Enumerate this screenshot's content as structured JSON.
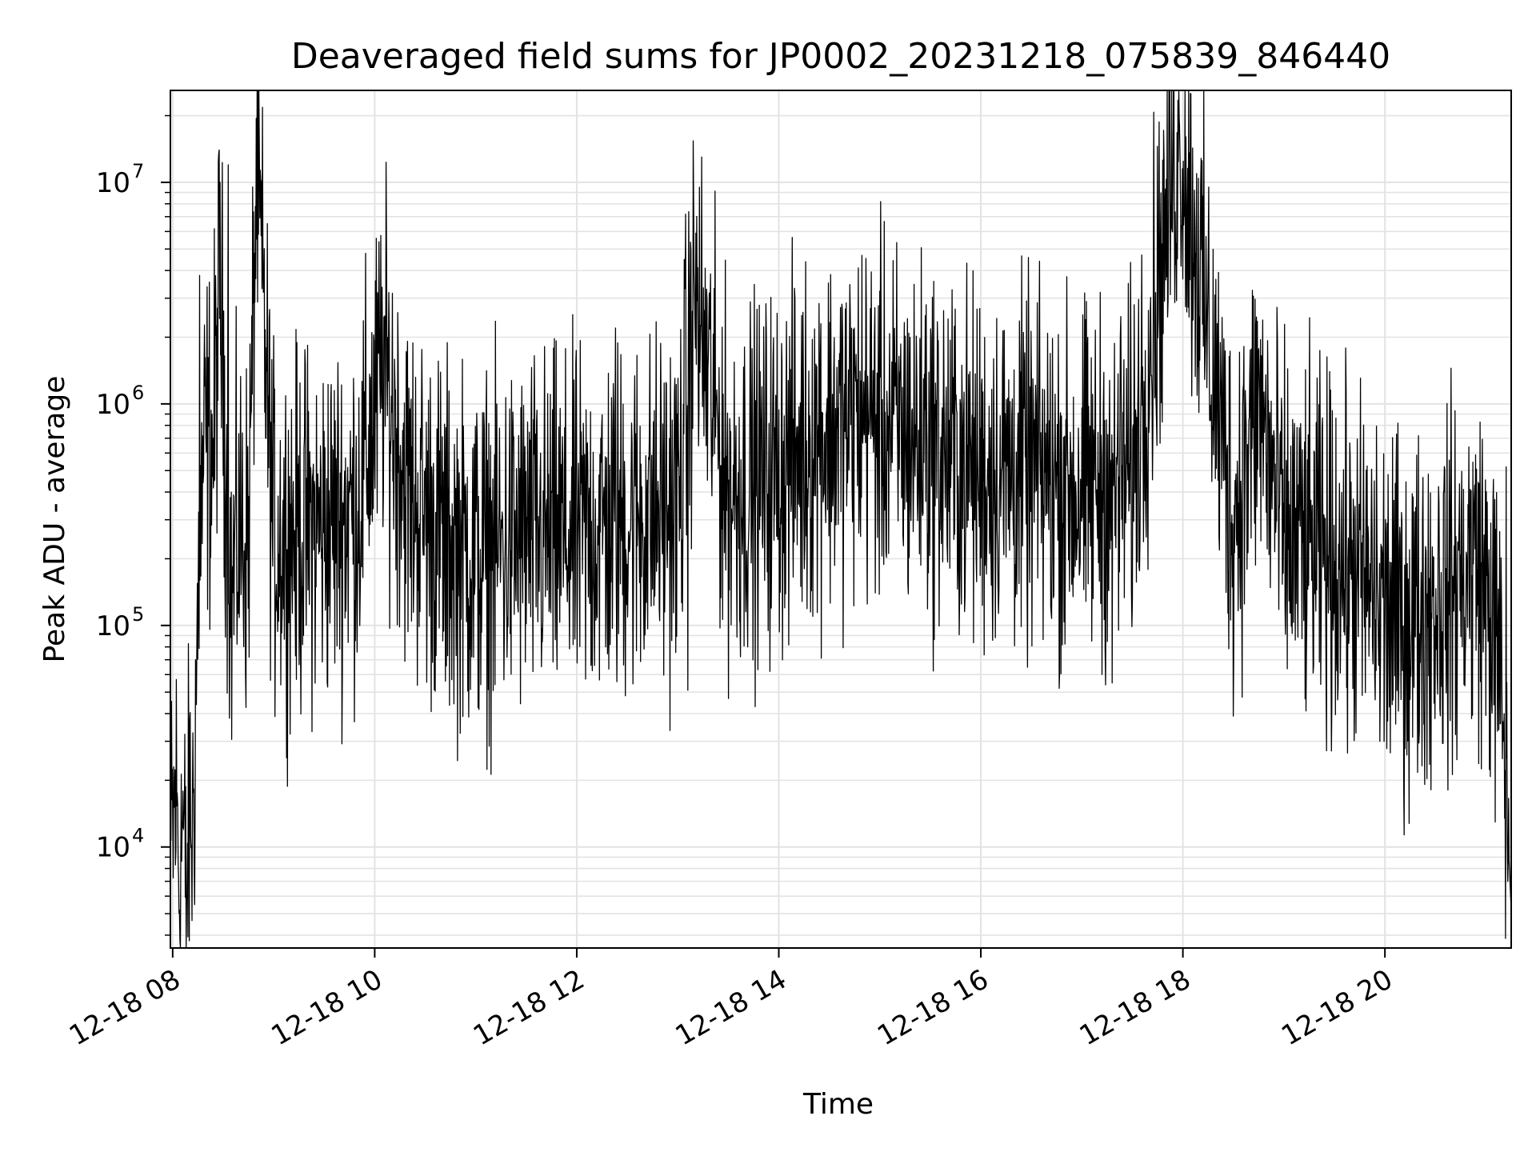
{
  "chart_data": {
    "type": "line",
    "title": "Deaveraged field sums for JP0002_20231218_075839_846440",
    "xlabel": "Time",
    "ylabel": "Peak ADU - average",
    "yscale": "log",
    "xlim": [
      "2023-12-18T07:58:39",
      "2023-12-18T21:15:00"
    ],
    "ylim": [
      3500,
      26000000
    ],
    "grid": true,
    "x_tick_labels": [
      "12-18 08",
      "12-18 10",
      "12-18 12",
      "12-18 14",
      "12-18 16",
      "12-18 18",
      "12-18 20"
    ],
    "y_tick_labels": [
      {
        "base": "10",
        "exp": "4"
      },
      {
        "base": "10",
        "exp": "5"
      },
      {
        "base": "10",
        "exp": "6"
      },
      {
        "base": "10",
        "exp": "7"
      }
    ],
    "line_color": "#000000",
    "series": [
      {
        "x": [
          "2023-12-18T07:59",
          "2023-12-18T08:02",
          "2023-12-18T08:04",
          "2023-12-18T08:06",
          "2023-12-18T08:08",
          "2023-12-18T08:10",
          "2023-12-18T08:12",
          "2023-12-18T08:14",
          "2023-12-18T08:16",
          "2023-12-18T08:18",
          "2023-12-18T08:20",
          "2023-12-18T08:24",
          "2023-12-18T08:28",
          "2023-12-18T08:32",
          "2023-12-18T08:35",
          "2023-12-18T08:38",
          "2023-12-18T08:40",
          "2023-12-18T08:45",
          "2023-12-18T08:50",
          "2023-12-18T09:00",
          "2023-12-18T09:30",
          "2023-12-18T09:50",
          "2023-12-18T10:05",
          "2023-12-18T10:20",
          "2023-12-18T10:40",
          "2023-12-18T11:00",
          "2023-12-18T11:30",
          "2023-12-18T12:00",
          "2023-12-18T12:30",
          "2023-12-18T13:00",
          "2023-12-18T13:10",
          "2023-12-18T13:30",
          "2023-12-18T14:00",
          "2023-12-18T14:20",
          "2023-12-18T14:50",
          "2023-12-18T15:20",
          "2023-12-18T16:00",
          "2023-12-18T16:30",
          "2023-12-18T17:00",
          "2023-12-18T17:30",
          "2023-12-18T17:58",
          "2023-12-18T18:30",
          "2023-12-18T18:45",
          "2023-12-18T19:00",
          "2023-12-18T19:30",
          "2023-12-18T19:50",
          "2023-12-18T20:10",
          "2023-12-18T20:40",
          "2023-12-18T20:55",
          "2023-12-18T21:05",
          "2023-12-18T21:10",
          "2023-12-18T21:14"
        ],
        "y": [
          9000,
          17000,
          8000,
          14000,
          5200,
          15000,
          12000,
          60000,
          200000,
          500000,
          700000,
          600000,
          3800000,
          500000,
          120000,
          250000,
          260000,
          250000,
          12000000,
          250000,
          280000,
          350000,
          1500000,
          400000,
          250000,
          200000,
          250000,
          250000,
          300000,
          350000,
          3000000,
          400000,
          500000,
          700000,
          900000,
          700000,
          500000,
          500000,
          400000,
          500000,
          18000000,
          300000,
          1000000,
          250000,
          200000,
          150000,
          100000,
          150000,
          200000,
          100000,
          40000,
          9000
        ],
        "num_points": 3000,
        "noise_dex": 0.4,
        "spikes": [
          {
            "x": "2023-12-18T08:16",
            "y": 3800000
          },
          {
            "x": "2023-12-18T08:33",
            "y": 12000000
          },
          {
            "x": "2023-12-18T12:23",
            "y": 2200000
          },
          {
            "x": "2023-12-18T13:10",
            "y": 3000000
          },
          {
            "x": "2023-12-18T14:25",
            "y": 2300000
          },
          {
            "x": "2023-12-18T14:52",
            "y": 2700000
          },
          {
            "x": "2023-12-18T15:27",
            "y": 2500000
          },
          {
            "x": "2023-12-18T17:58",
            "y": 18000000
          },
          {
            "x": "2023-12-18T21:12",
            "y": 520000
          }
        ],
        "dips": [
          {
            "x": "2023-12-18T08:04",
            "y": 5200
          },
          {
            "x": "2023-12-18T10:42",
            "y": 56000
          },
          {
            "x": "2023-12-18T11:03",
            "y": 54000
          },
          {
            "x": "2023-12-18T13:06",
            "y": 51000
          },
          {
            "x": "2023-12-18T17:18",
            "y": 55000
          },
          {
            "x": "2023-12-18T19:57",
            "y": 30000
          },
          {
            "x": "2023-12-18T21:15",
            "y": 5200
          }
        ]
      }
    ]
  }
}
